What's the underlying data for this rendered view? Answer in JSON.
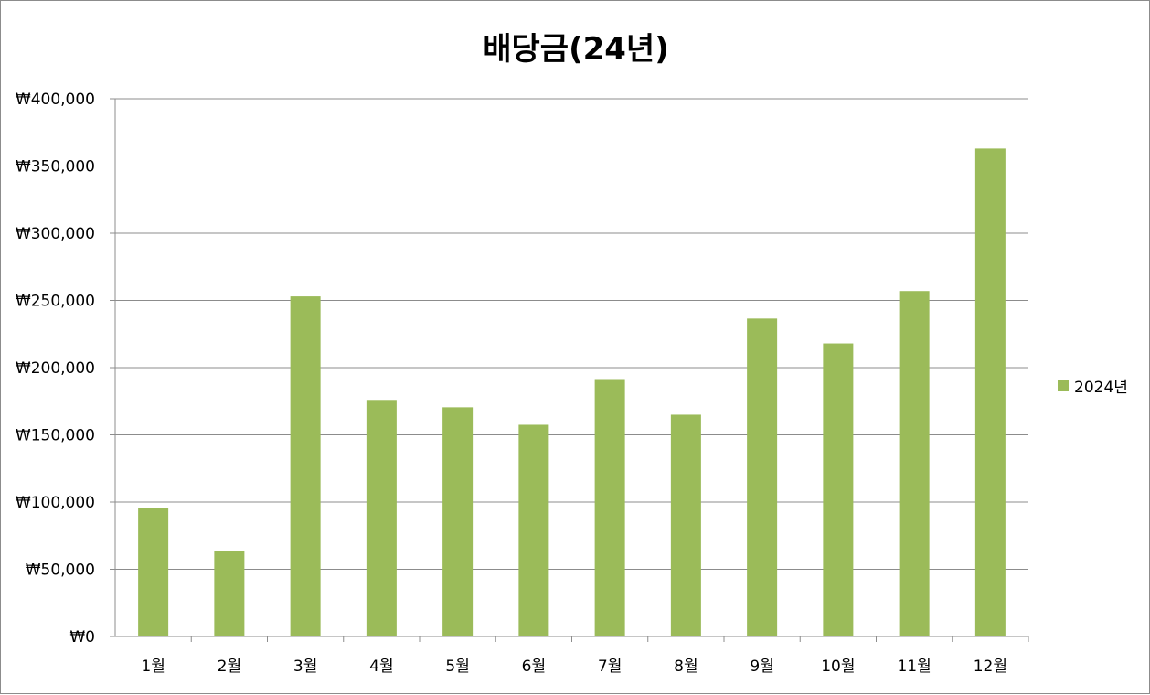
{
  "chart_data": {
    "type": "bar",
    "title": "배당금(24년)",
    "categories": [
      "1월",
      "2월",
      "3월",
      "4월",
      "5월",
      "6월",
      "7월",
      "8월",
      "9월",
      "10월",
      "11월",
      "12월"
    ],
    "series": [
      {
        "name": "2024년",
        "color": "#9bbb59",
        "values": [
          95500,
          63500,
          253000,
          176000,
          170500,
          157500,
          191500,
          165000,
          236500,
          218000,
          257000,
          363000
        ]
      }
    ],
    "y_ticks": [
      "₩0",
      "₩50,000",
      "₩100,000",
      "₩150,000",
      "₩200,000",
      "₩250,000",
      "₩300,000",
      "₩350,000",
      "₩400,000"
    ],
    "ylim": [
      0,
      400000
    ],
    "grid": true,
    "legend_position": "right"
  }
}
